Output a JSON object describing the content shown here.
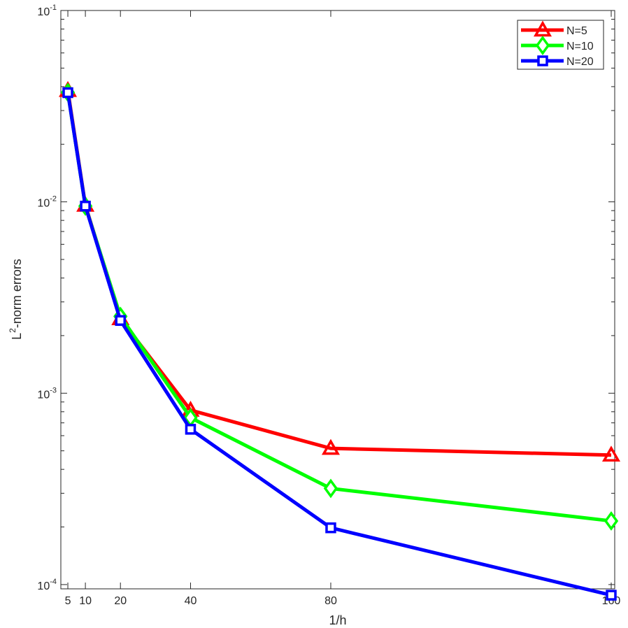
{
  "chart_data": {
    "type": "line",
    "xlabel": "1/h",
    "ylabel_main": "L",
    "ylabel_sup": "2",
    "ylabel_rest": "-norm  errors",
    "yscale": "log",
    "xlim": [
      3,
      161
    ],
    "ylim": [
      9.5e-05,
      0.1
    ],
    "x_ticks": [
      5,
      10,
      20,
      40,
      80,
      160
    ],
    "y_ticks": [
      {
        "value": 0.1,
        "base": "10",
        "exp": "-1"
      },
      {
        "value": 0.01,
        "base": "10",
        "exp": "-2"
      },
      {
        "value": 0.001,
        "base": "10",
        "exp": "-3"
      },
      {
        "value": 0.0001,
        "base": "10",
        "exp": "-4"
      }
    ],
    "grid": false,
    "legend_position": "top-right",
    "x": [
      5,
      10,
      20,
      40,
      80,
      160
    ],
    "series": [
      {
        "name": "N=5",
        "color": "#ff0000",
        "marker": "triangle",
        "values": [
          0.0382,
          0.0096,
          0.00245,
          0.000815,
          0.000515,
          0.000475
        ]
      },
      {
        "name": "N=10",
        "color": "#00ff00",
        "marker": "diamond",
        "values": [
          0.0373,
          0.0095,
          0.00252,
          0.000745,
          0.000318,
          0.000215
        ]
      },
      {
        "name": "N=20",
        "color": "#0000ff",
        "marker": "square",
        "values": [
          0.0372,
          0.0095,
          0.0024,
          0.000648,
          0.000198,
          8.8e-05
        ]
      }
    ]
  }
}
